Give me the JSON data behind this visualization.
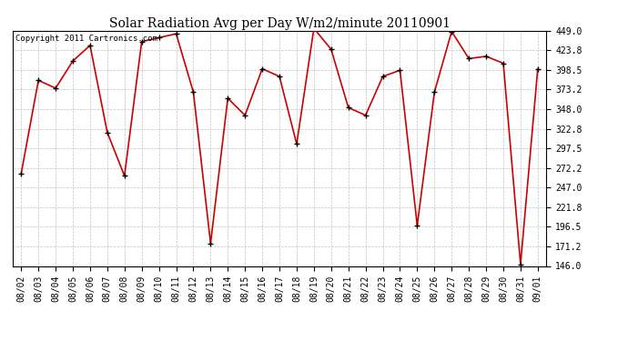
{
  "title": "Solar Radiation Avg per Day W/m2/minute 20110901",
  "copyright_text": "Copyright 2011 Cartronics.com",
  "dates": [
    "08/02",
    "08/03",
    "08/04",
    "08/05",
    "08/06",
    "08/07",
    "08/08",
    "08/09",
    "08/10",
    "08/11",
    "08/12",
    "08/13",
    "08/14",
    "08/15",
    "08/16",
    "08/17",
    "08/18",
    "08/19",
    "08/20",
    "08/21",
    "08/22",
    "08/23",
    "08/24",
    "08/25",
    "08/26",
    "08/27",
    "08/28",
    "08/29",
    "08/30",
    "08/31",
    "09/01"
  ],
  "values": [
    265.0,
    385.0,
    375.0,
    410.0,
    430.0,
    318.0,
    262.0,
    435.0,
    440.0,
    445.0,
    370.0,
    175.0,
    362.0,
    340.0,
    400.0,
    390.0,
    303.0,
    452.0,
    425.0,
    350.0,
    340.0,
    390.0,
    398.0,
    198.0,
    370.0,
    448.0,
    413.0,
    416.0,
    407.0,
    148.0,
    400.0
  ],
  "ymin": 146.0,
  "ymax": 449.0,
  "yticks": [
    146.0,
    171.2,
    196.5,
    221.8,
    247.0,
    272.2,
    297.5,
    322.8,
    348.0,
    373.2,
    398.5,
    423.8,
    449.0
  ],
  "line_color": "#cc0000",
  "marker_color": "#000000",
  "background_color": "#ffffff",
  "grid_color": "#bbbbbb",
  "title_fontsize": 10,
  "tick_fontsize": 7,
  "copyright_fontsize": 6.5
}
